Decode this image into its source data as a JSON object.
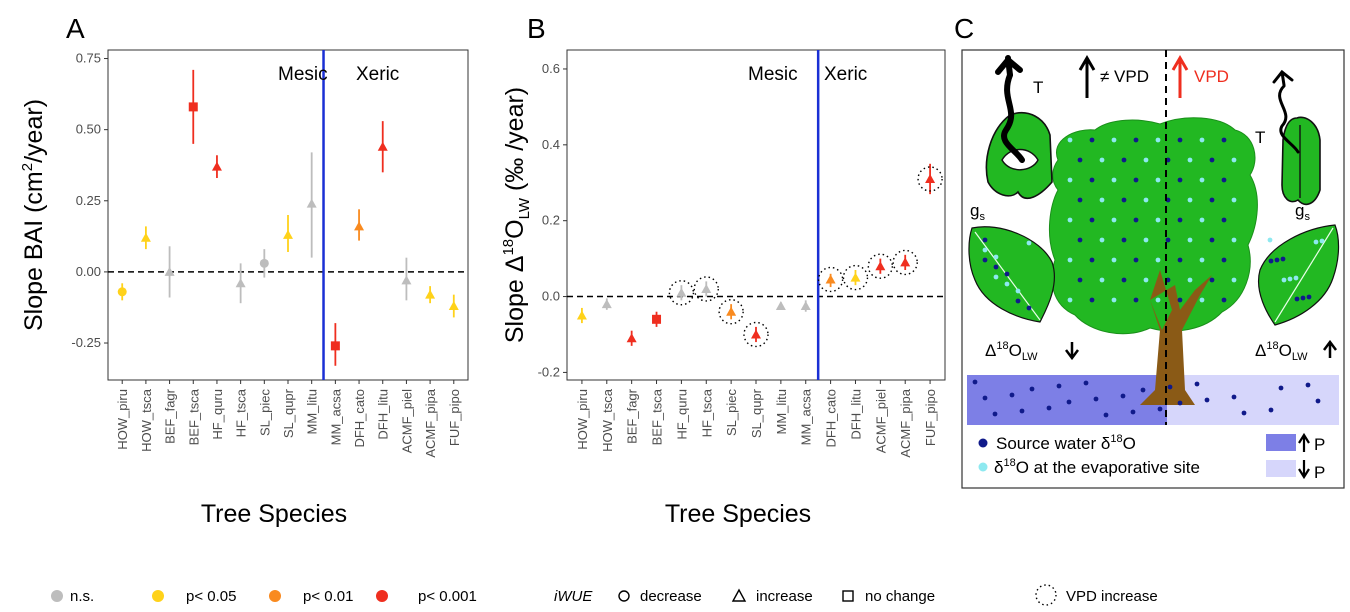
{
  "panels": {
    "a": "A",
    "b": "B",
    "c": "C"
  },
  "chart_data": [
    {
      "type": "scatter",
      "ylabel_main": "Slope BAI (cm",
      "ylabel_sup": "2",
      "ylabel_end": "/year)",
      "xlabel": "Tree Species",
      "ylim": [
        -0.38,
        0.78
      ],
      "yticks": [
        -0.25,
        0.0,
        0.25,
        0.5,
        0.75
      ],
      "ytick_labels": [
        "-0.25",
        "0.00",
        "0.25",
        "0.50",
        "0.75"
      ],
      "categories": [
        "HOW_piru",
        "HOW_tsca",
        "BEF_fagr",
        "BEF_tsca",
        "HF_quru",
        "HF_tsca",
        "SL_piec",
        "SL_qupr",
        "MM_litu",
        "MM_acsa",
        "DFH_cato",
        "DFH_litu",
        "ACMF_piel",
        "ACMF_pipa",
        "FUF_pipo"
      ],
      "points": [
        {
          "y": -0.07,
          "lo": -0.1,
          "hi": -0.04,
          "sig": "p05",
          "shape": "circle"
        },
        {
          "y": 0.12,
          "lo": 0.08,
          "hi": 0.16,
          "sig": "p05",
          "shape": "triangle"
        },
        {
          "y": 0.0,
          "lo": -0.09,
          "hi": 0.09,
          "sig": "ns",
          "shape": "triangle"
        },
        {
          "y": 0.58,
          "lo": 0.45,
          "hi": 0.71,
          "sig": "p001",
          "shape": "square"
        },
        {
          "y": 0.37,
          "lo": 0.33,
          "hi": 0.41,
          "sig": "p001",
          "shape": "triangle"
        },
        {
          "y": -0.04,
          "lo": -0.11,
          "hi": 0.03,
          "sig": "ns",
          "shape": "triangle"
        },
        {
          "y": 0.03,
          "lo": -0.02,
          "hi": 0.08,
          "sig": "ns",
          "shape": "circle"
        },
        {
          "y": 0.13,
          "lo": 0.07,
          "hi": 0.2,
          "sig": "p05",
          "shape": "triangle"
        },
        {
          "y": 0.24,
          "lo": 0.05,
          "hi": 0.42,
          "sig": "ns",
          "shape": "triangle"
        },
        {
          "y": -0.26,
          "lo": -0.33,
          "hi": -0.18,
          "sig": "p001",
          "shape": "square"
        },
        {
          "y": 0.16,
          "lo": 0.11,
          "hi": 0.22,
          "sig": "p01",
          "shape": "triangle"
        },
        {
          "y": 0.44,
          "lo": 0.35,
          "hi": 0.53,
          "sig": "p001",
          "shape": "triangle"
        },
        {
          "y": -0.03,
          "lo": -0.1,
          "hi": 0.05,
          "sig": "ns",
          "shape": "triangle"
        },
        {
          "y": -0.08,
          "lo": -0.11,
          "hi": -0.05,
          "sig": "p05",
          "shape": "triangle"
        },
        {
          "y": -0.12,
          "lo": -0.16,
          "hi": -0.08,
          "sig": "p05",
          "shape": "triangle"
        }
      ],
      "divider_after_index": 8.5,
      "regions": {
        "left": "Mesic",
        "right": "Xeric"
      }
    },
    {
      "type": "scatter",
      "ylabel_pre": "Slope ",
      "ylabel_delta": "Δ",
      "ylabel_sup": "18",
      "ylabel_o": "O",
      "ylabel_sub": "LW",
      "ylabel_end": " (‰ /year)",
      "xlabel": "Tree Species",
      "ylim": [
        -0.22,
        0.65
      ],
      "yticks": [
        -0.2,
        0.0,
        0.2,
        0.4,
        0.6
      ],
      "ytick_labels": [
        "-0.2",
        "0.0",
        "0.2",
        "0.4",
        "0.6"
      ],
      "categories": [
        "HOW_piru",
        "HOW_tsca",
        "BEF_fagr",
        "BEF_tsca",
        "HF_quru",
        "HF_tsca",
        "SL_piec",
        "SL_qupr",
        "MM_litu",
        "MM_acsa",
        "DFH_cato",
        "DFH_litu",
        "ACMF_piel",
        "ACMF_pipa",
        "FUF_pipo"
      ],
      "points": [
        {
          "y": -0.05,
          "lo": -0.07,
          "hi": -0.03,
          "sig": "p05",
          "shape": "triangle",
          "vpd": false
        },
        {
          "y": -0.02,
          "lo": -0.035,
          "hi": -0.005,
          "sig": "ns",
          "shape": "triangle",
          "vpd": false
        },
        {
          "y": -0.11,
          "lo": -0.13,
          "hi": -0.09,
          "sig": "p001",
          "shape": "triangle",
          "vpd": false
        },
        {
          "y": -0.06,
          "lo": -0.08,
          "hi": -0.04,
          "sig": "p001",
          "shape": "square",
          "vpd": false
        },
        {
          "y": 0.01,
          "lo": -0.01,
          "hi": 0.03,
          "sig": "ns",
          "shape": "triangle",
          "vpd": true
        },
        {
          "y": 0.02,
          "lo": 0.0,
          "hi": 0.04,
          "sig": "ns",
          "shape": "triangle",
          "vpd": true
        },
        {
          "y": -0.04,
          "lo": -0.06,
          "hi": -0.02,
          "sig": "p01",
          "shape": "triangle",
          "vpd": true
        },
        {
          "y": -0.1,
          "lo": -0.12,
          "hi": -0.08,
          "sig": "p001",
          "shape": "triangle",
          "vpd": true
        },
        {
          "y": -0.025,
          "lo": -0.035,
          "hi": -0.015,
          "sig": "ns",
          "shape": "triangle",
          "vpd": false
        },
        {
          "y": -0.025,
          "lo": -0.04,
          "hi": -0.01,
          "sig": "ns",
          "shape": "triangle",
          "vpd": false
        },
        {
          "y": 0.045,
          "lo": 0.025,
          "hi": 0.06,
          "sig": "p01",
          "shape": "triangle",
          "vpd": true
        },
        {
          "y": 0.05,
          "lo": 0.03,
          "hi": 0.07,
          "sig": "p05",
          "shape": "triangle",
          "vpd": true
        },
        {
          "y": 0.08,
          "lo": 0.06,
          "hi": 0.1,
          "sig": "p001",
          "shape": "triangle",
          "vpd": true
        },
        {
          "y": 0.09,
          "lo": 0.07,
          "hi": 0.11,
          "sig": "p001",
          "shape": "triangle",
          "vpd": true
        },
        {
          "y": 0.31,
          "lo": 0.27,
          "hi": 0.35,
          "sig": "p001",
          "shape": "triangle",
          "vpd": true
        }
      ],
      "divider_after_index": 9.5,
      "regions": {
        "left": "Mesic",
        "right": "Xeric"
      }
    }
  ],
  "colors": {
    "ns": "#bdbdbd",
    "p05": "#ffd21a",
    "p01": "#f98a1f",
    "p001": "#ef2e1f",
    "divider": "#1a2fd4",
    "leaf": "#22b822",
    "trunk": "#8a5a16",
    "water_dark": "#7d7fe6",
    "water_light": "#d6d6fb",
    "dot_dark": "#101a8a",
    "dot_light": "#8ee9f0"
  },
  "schematic": {
    "t_left": "T",
    "t_right": "T",
    "gs": "g",
    "gs_sub": "s",
    "vpd_neq": "≠ VPD",
    "vpd": "VPD",
    "delta_left_sym": "Δ",
    "delta_left_sup": "18",
    "delta_left_o": "O",
    "delta_left_sub": "LW",
    "delta_right_sym": "Δ",
    "delta_right_sup": "18",
    "delta_right_o": "O",
    "delta_right_sub": "LW",
    "legend_source": "Source water δ",
    "legend_source_sup": "18",
    "legend_source_o": "O",
    "legend_evap_pre": "δ",
    "legend_evap_sup": "18",
    "legend_evap_post": "O at the evaporative site",
    "p_label_up": "P",
    "p_label_down": "P"
  },
  "legend": {
    "ns": "n.s.",
    "p05": "p< 0.05",
    "p01": "p< 0.01",
    "p001": "p< 0.001",
    "iwue": "iWUE",
    "decrease": "decrease",
    "increase": "increase",
    "nochange": "no change",
    "vpd_increase": "VPD increase"
  }
}
